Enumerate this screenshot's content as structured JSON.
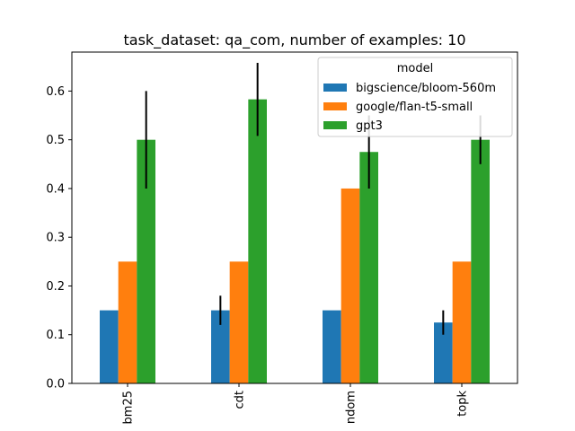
{
  "chart_data": {
    "type": "bar",
    "title": "task_dataset: qa_com, number of examples: 10",
    "xlabel": "",
    "ylabel": "",
    "categories": [
      "bm25",
      "cdt",
      "ndom",
      "topk"
    ],
    "ylim": [
      0,
      0.68
    ],
    "yticks": [
      0.0,
      0.1,
      0.2,
      0.3,
      0.4,
      0.5,
      0.6
    ],
    "ytick_labels": [
      "0.0",
      "0.1",
      "0.2",
      "0.3",
      "0.4",
      "0.5",
      "0.6"
    ],
    "grid": false,
    "legend": {
      "title": "model",
      "placement": "top-right"
    },
    "series": [
      {
        "name": "bigscience/bloom-560m",
        "color": "#1f77b4",
        "values": [
          0.15,
          0.15,
          0.15,
          0.125
        ],
        "errors": [
          0.0,
          0.03,
          0.0,
          0.025
        ]
      },
      {
        "name": "google/flan-t5-small",
        "color": "#ff7f0e",
        "values": [
          0.25,
          0.25,
          0.4,
          0.25
        ],
        "errors": [
          0.0,
          0.0,
          0.0,
          0.0
        ]
      },
      {
        "name": "gpt3",
        "color": "#2ca02c",
        "values": [
          0.5,
          0.583,
          0.475,
          0.5
        ],
        "errors": [
          0.1,
          0.075,
          0.075,
          0.05
        ]
      }
    ]
  }
}
